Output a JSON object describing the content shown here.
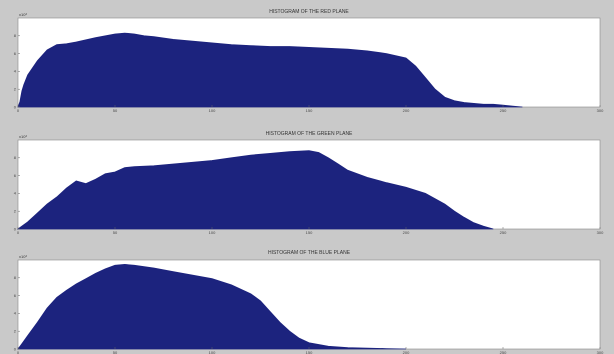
{
  "figure": {
    "background": "#c9c9c9",
    "axes_background": "#ffffff",
    "fill_color": "#1c237e"
  },
  "chart_data": [
    {
      "type": "area",
      "title": "HISTOGRAM OF THE RED PLANE",
      "x_ticks": [
        "0",
        "50",
        "100",
        "150",
        "200",
        "250",
        "300"
      ],
      "y_ticks": [
        "0",
        "2",
        "4",
        "6",
        "8"
      ],
      "y_exponent": "x10³",
      "xlim": [
        0,
        300
      ],
      "ylim": [
        0,
        10
      ],
      "x": [
        0,
        1,
        2,
        3,
        5,
        10,
        15,
        20,
        25,
        30,
        40,
        50,
        55,
        60,
        65,
        70,
        80,
        90,
        100,
        110,
        120,
        130,
        140,
        150,
        160,
        170,
        180,
        190,
        200,
        205,
        210,
        215,
        220,
        225,
        230,
        235,
        240,
        245,
        250,
        255,
        260
      ],
      "values": [
        0,
        0.6,
        1.8,
        2.5,
        3.6,
        5.2,
        6.4,
        7.0,
        7.1,
        7.3,
        7.8,
        8.2,
        8.3,
        8.2,
        8.0,
        7.9,
        7.6,
        7.4,
        7.2,
        7.0,
        6.9,
        6.8,
        6.8,
        6.7,
        6.6,
        6.5,
        6.3,
        6.0,
        5.5,
        4.6,
        3.3,
        2.0,
        1.1,
        0.7,
        0.5,
        0.4,
        0.3,
        0.3,
        0.2,
        0.1,
        0
      ]
    },
    {
      "type": "area",
      "title": "HISTOGRAM OF THE GREEN PLANE",
      "x_ticks": [
        "0",
        "50",
        "100",
        "150",
        "200",
        "250",
        "300"
      ],
      "y_ticks": [
        "0",
        "2",
        "4",
        "6",
        "8"
      ],
      "y_exponent": "x10³",
      "xlim": [
        0,
        300
      ],
      "ylim": [
        0,
        10
      ],
      "x": [
        0,
        5,
        10,
        15,
        20,
        25,
        30,
        35,
        40,
        45,
        50,
        55,
        60,
        70,
        80,
        90,
        100,
        110,
        120,
        130,
        140,
        150,
        155,
        160,
        165,
        170,
        180,
        190,
        200,
        210,
        220,
        225,
        230,
        235,
        240,
        245
      ],
      "values": [
        0,
        0.8,
        1.8,
        2.8,
        3.6,
        4.6,
        5.4,
        5.1,
        5.6,
        6.2,
        6.4,
        6.9,
        7.0,
        7.1,
        7.3,
        7.5,
        7.7,
        8.0,
        8.3,
        8.5,
        8.7,
        8.8,
        8.6,
        8.0,
        7.3,
        6.6,
        5.8,
        5.2,
        4.7,
        4.0,
        2.8,
        2.0,
        1.3,
        0.7,
        0.3,
        0
      ]
    },
    {
      "type": "area",
      "title": "HISTOGRAM OF THE BLUE PLANE",
      "x_ticks": [
        "0",
        "50",
        "100",
        "150",
        "200",
        "250",
        "300"
      ],
      "y_ticks": [
        "0",
        "2",
        "4",
        "6",
        "8"
      ],
      "y_exponent": "x10³",
      "xlim": [
        0,
        300
      ],
      "ylim": [
        0,
        10
      ],
      "x": [
        0,
        2,
        5,
        10,
        15,
        20,
        25,
        30,
        35,
        40,
        45,
        50,
        55,
        60,
        70,
        80,
        90,
        100,
        110,
        120,
        125,
        130,
        135,
        140,
        145,
        150,
        160,
        170,
        180,
        190,
        200
      ],
      "values": [
        0,
        0.6,
        1.5,
        3.0,
        4.6,
        5.8,
        6.6,
        7.3,
        7.9,
        8.5,
        9.0,
        9.4,
        9.5,
        9.4,
        9.1,
        8.7,
        8.3,
        7.9,
        7.2,
        6.2,
        5.4,
        4.2,
        3.0,
        2.0,
        1.2,
        0.7,
        0.3,
        0.15,
        0.1,
        0.05,
        0
      ]
    }
  ]
}
